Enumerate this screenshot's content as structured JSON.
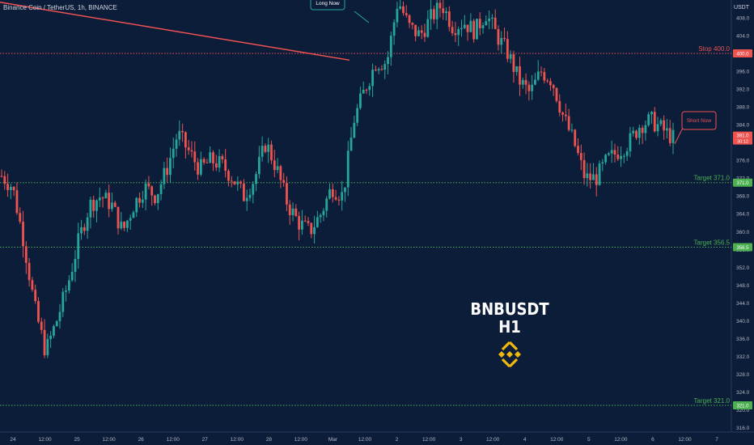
{
  "header": {
    "symbol": "Binance Coin / TetherUS, 1h, BINANCE",
    "currency": "USDT"
  },
  "overlay": {
    "pair": "BNBUSDT",
    "timeframe": "H1",
    "logo_icon": "binance-diamond-icon",
    "logo_color": "#f0b90b"
  },
  "chart_data": {
    "type": "candlestick",
    "ylim": [
      315.0,
      412.0
    ],
    "y_ticks": [
      408.0,
      404.0,
      400.0,
      396.0,
      392.0,
      388.0,
      384.0,
      380.0,
      376.0,
      372.0,
      368.0,
      364.0,
      360.0,
      356.0,
      352.0,
      348.0,
      344.0,
      340.0,
      336.0,
      332.0,
      328.0,
      324.0,
      320.0,
      316.0
    ],
    "x_ticks": [
      "24",
      "12:00",
      "25",
      "12:00",
      "26",
      "12:00",
      "27",
      "12:00",
      "28",
      "12:00",
      "Mar",
      "12:00",
      "2",
      "12:00",
      "3",
      "12:00",
      "4",
      "12:00",
      "5",
      "12:00",
      "6",
      "12:00",
      "7"
    ],
    "up_color": "#26a69a",
    "down_color": "#ef5350",
    "approx_closes": [
      372.5,
      370.0,
      358.0,
      343.0,
      333.0,
      340.0,
      348.0,
      358.0,
      366.0,
      368.0,
      366.0,
      360.0,
      366.0,
      370.0,
      368.0,
      374.0,
      382.0,
      378.0,
      374.0,
      376.0,
      375.0,
      372.0,
      368.0,
      372.0,
      380.0,
      374.0,
      366.0,
      362.0,
      360.0,
      364.0,
      370.0,
      368.0,
      385.0,
      392.0,
      398.0,
      398.0,
      412.0,
      406.0,
      404.0,
      408.0,
      411.0,
      406.0,
      407.0,
      405.0,
      409.0,
      404.0,
      400.0,
      394.0,
      391.0,
      396.0,
      394.0,
      386.0,
      380.0,
      372.0,
      372.0,
      376.0,
      378.0,
      380.0,
      384.0,
      385.0,
      383.0,
      381.0
    ],
    "horizontal_levels": [
      {
        "label": "Stop 400.0",
        "value": 400.0,
        "color": "#ef5350"
      },
      {
        "label": "Target 371.0",
        "value": 371.0,
        "color": "#4caf50"
      },
      {
        "label": "Target 356.5",
        "value": 356.5,
        "color": "#4caf50"
      },
      {
        "label": "Target 321.0",
        "value": 321.0,
        "color": "#4caf50"
      }
    ],
    "trendline_color": "#ef5350",
    "current_price": "381.0",
    "countdown": "30:12",
    "annotations": [
      "Long Now",
      "Short Now"
    ]
  }
}
